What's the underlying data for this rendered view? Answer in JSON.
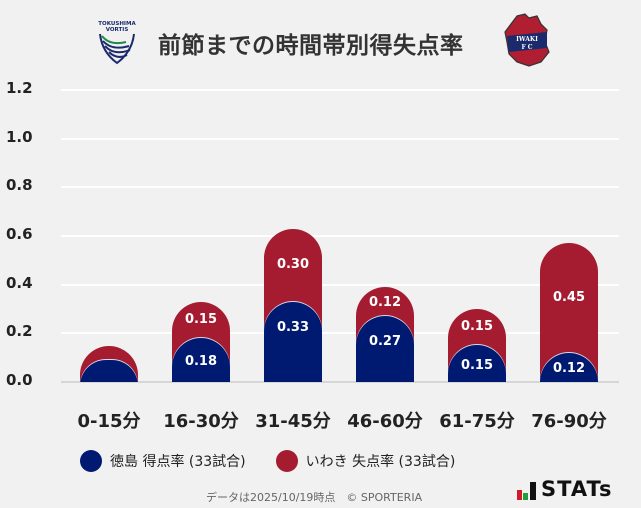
{
  "header": {
    "title": "前節までの時間帯別得失点率",
    "left_logo": {
      "name": "tokushima-vortis-logo",
      "text_line1": "TOKUSHIMA",
      "text_line2": "VORTIS"
    },
    "right_logo": {
      "name": "iwaki-fc-logo",
      "text_line1": "IWAKI",
      "text_line2": "F C"
    }
  },
  "colors": {
    "tokushima": "#001a72",
    "iwaki": "#a51c30",
    "background": "#f1f1f1"
  },
  "chart_data": {
    "type": "bar",
    "stacked": true,
    "title": "前節までの時間帯別得失点率",
    "xlabel": "",
    "ylabel": "",
    "ylim": [
      0,
      1.2
    ],
    "yticks": [
      "1.2",
      "1.0",
      "0.8",
      "0.6",
      "0.4",
      "0.2",
      "0.0"
    ],
    "grid": true,
    "legend_position": "bottom",
    "categories": [
      "0-15分",
      "16-30分",
      "31-45分",
      "46-60分",
      "61-75分",
      "76-90分"
    ],
    "series": [
      {
        "name": "徳島 得点率 (33試合)",
        "color": "#001a72",
        "values": [
          0.09,
          0.18,
          0.33,
          0.27,
          0.15,
          0.12
        ],
        "labels": [
          "",
          "0.18",
          "0.33",
          "0.27",
          "0.15",
          "0.12"
        ]
      },
      {
        "name": "いわき 失点率 (33試合)",
        "color": "#a51c30",
        "values": [
          0.06,
          0.15,
          0.3,
          0.12,
          0.15,
          0.45
        ],
        "labels": [
          "",
          "0.15",
          "0.30",
          "0.12",
          "0.15",
          "0.45"
        ]
      }
    ]
  },
  "legend": {
    "items": [
      {
        "label": "徳島 得点率 (33試合)",
        "color": "#001a72"
      },
      {
        "label": "いわき 失点率 (33試合)",
        "color": "#a51c30"
      }
    ]
  },
  "footer": {
    "text": "データは2025/10/19時点　© SPORTERIA"
  },
  "brand": {
    "name": "STATs"
  }
}
